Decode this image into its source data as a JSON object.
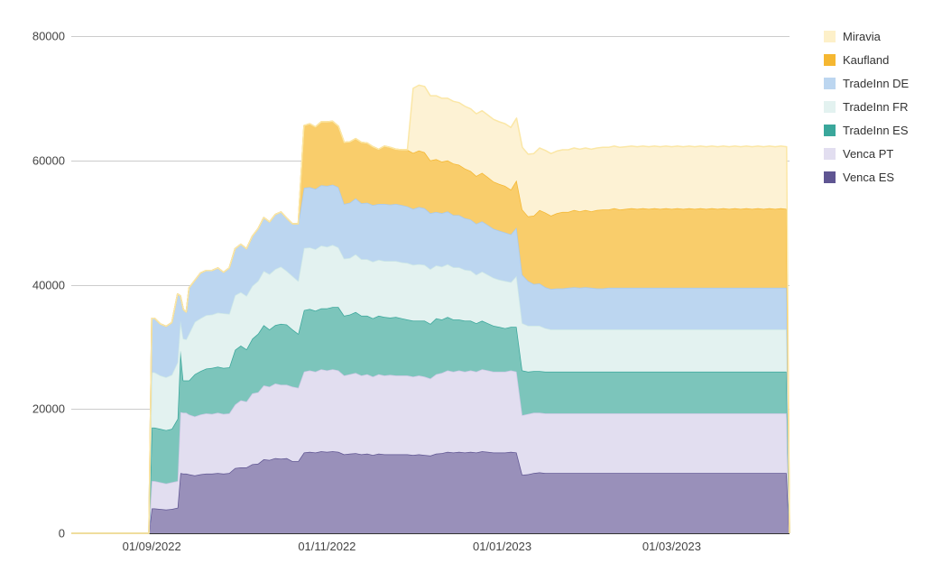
{
  "chart_data": {
    "type": "area",
    "stacked": true,
    "title": "",
    "xlabel": "",
    "ylabel": "",
    "ylim": [
      0,
      80000
    ],
    "y_ticks": [
      "0",
      "20000",
      "40000",
      "60000",
      "80000"
    ],
    "x_ticks": [
      "01/09/2022",
      "01/11/2022",
      "01/01/2023",
      "01/03/2023"
    ],
    "grid": true,
    "legend_position": "right",
    "x_domain_days": [
      0,
      250
    ],
    "x_tick_days": [
      28,
      89,
      150,
      209
    ],
    "x": [
      0,
      27,
      28,
      29,
      31,
      33,
      35,
      37,
      38,
      39,
      40,
      41,
      43,
      45,
      47,
      49,
      51,
      53,
      55,
      57,
      59,
      61,
      63,
      65,
      67,
      69,
      71,
      73,
      75,
      77,
      79,
      81,
      83,
      85,
      87,
      89,
      91,
      93,
      95,
      97,
      99,
      101,
      103,
      105,
      107,
      109,
      111,
      113,
      115,
      117,
      119,
      121,
      123,
      125,
      127,
      129,
      131,
      133,
      135,
      137,
      139,
      141,
      143,
      145,
      147,
      149,
      151,
      153,
      155,
      157,
      159,
      161,
      163,
      165,
      167,
      169,
      171,
      173,
      175,
      177,
      179,
      181,
      183,
      185,
      187,
      189,
      191,
      193,
      195,
      197,
      199,
      201,
      203,
      205,
      207,
      209,
      211,
      213,
      215,
      217,
      219,
      221,
      223,
      225,
      227,
      229,
      231,
      233,
      235,
      237,
      239,
      241,
      243,
      245,
      247,
      249,
      250
    ],
    "series": [
      {
        "name": "Venca ES",
        "color": "#5f5592",
        "fill": "#9990ba",
        "values": [
          0,
          0,
          4000,
          4000,
          3900,
          3800,
          3900,
          4100,
          9700,
          9600,
          9600,
          9500,
          9300,
          9500,
          9600,
          9600,
          9700,
          9600,
          9700,
          10500,
          10600,
          10600,
          11100,
          11200,
          11900,
          11800,
          12100,
          12000,
          12100,
          11600,
          11600,
          13000,
          13100,
          13000,
          13200,
          13100,
          13200,
          13100,
          12700,
          12800,
          12900,
          12700,
          12800,
          12600,
          12800,
          12700,
          12700,
          12700,
          12700,
          12700,
          12600,
          12700,
          12600,
          12500,
          12800,
          12900,
          13100,
          13000,
          13100,
          13000,
          13100,
          13000,
          13200,
          13100,
          13000,
          13000,
          13000,
          13100,
          13000,
          9400,
          9500,
          9700,
          9800,
          9700,
          9700,
          9700,
          9700,
          9700,
          9700,
          9700,
          9700,
          9700,
          9700,
          9700,
          9700,
          9700,
          9700,
          9700,
          9700,
          9700,
          9700,
          9700,
          9700,
          9700,
          9700,
          9700,
          9700,
          9700,
          9700,
          9700,
          9700,
          9700,
          9700,
          9700,
          9700,
          9700,
          9700,
          9700,
          9700,
          9700,
          9700,
          9700,
          9700,
          9700,
          9700,
          9700,
          0
        ]
      },
      {
        "name": "Venca PT",
        "color": "#cfc9e6",
        "fill": "#e2def0",
        "values": [
          0,
          0,
          4400,
          4400,
          4300,
          4200,
          4300,
          4300,
          9800,
          9800,
          9800,
          9600,
          9500,
          9600,
          9700,
          9600,
          9700,
          9600,
          9600,
          10200,
          10800,
          10600,
          11400,
          11500,
          11900,
          11800,
          12000,
          11900,
          11800,
          12000,
          11800,
          13000,
          13100,
          13000,
          13200,
          13100,
          13200,
          13100,
          12700,
          12800,
          12900,
          12700,
          12800,
          12600,
          12800,
          12700,
          12800,
          12700,
          12700,
          12700,
          12600,
          12700,
          12600,
          12400,
          12800,
          12900,
          13100,
          13000,
          13100,
          13000,
          13100,
          13000,
          13200,
          13100,
          13000,
          13000,
          13000,
          13100,
          13000,
          9600,
          9700,
          9700,
          9600,
          9600,
          9600,
          9600,
          9600,
          9600,
          9600,
          9600,
          9600,
          9600,
          9600,
          9600,
          9600,
          9600,
          9600,
          9600,
          9600,
          9600,
          9600,
          9600,
          9600,
          9600,
          9600,
          9600,
          9600,
          9600,
          9600,
          9600,
          9600,
          9600,
          9600,
          9600,
          9600,
          9600,
          9600,
          9600,
          9600,
          9600,
          9600,
          9600,
          9600,
          9600,
          9600,
          9600,
          0
        ]
      },
      {
        "name": "TradeInn ES",
        "color": "#3aa79b",
        "fill": "#7cc5bb",
        "values": [
          0,
          0,
          8600,
          8600,
          8600,
          8600,
          8600,
          10000,
          9900,
          5200,
          5200,
          5500,
          6800,
          7000,
          7200,
          7400,
          7400,
          7400,
          7400,
          8800,
          8800,
          8400,
          8800,
          9400,
          9700,
          9200,
          9400,
          9800,
          9700,
          9200,
          8700,
          9900,
          9900,
          9800,
          9800,
          10000,
          10000,
          10200,
          9600,
          9600,
          9800,
          9600,
          9400,
          9400,
          9400,
          9400,
          9200,
          9400,
          9200,
          9000,
          9000,
          8800,
          9000,
          8800,
          9000,
          8600,
          8600,
          8400,
          8200,
          8200,
          8000,
          7800,
          7800,
          7600,
          7400,
          7200,
          7000,
          7000,
          7200,
          7200,
          6800,
          6700,
          6700,
          6700,
          6700,
          6700,
          6700,
          6700,
          6700,
          6700,
          6700,
          6700,
          6700,
          6700,
          6700,
          6700,
          6700,
          6700,
          6700,
          6700,
          6700,
          6700,
          6700,
          6700,
          6700,
          6700,
          6700,
          6700,
          6700,
          6700,
          6700,
          6700,
          6700,
          6700,
          6700,
          6700,
          6700,
          6700,
          6700,
          6700,
          6700,
          6700,
          6700,
          6700,
          6700,
          6700,
          0
        ]
      },
      {
        "name": "TradeInn FR",
        "color": "#cfe9e6",
        "fill": "#e3f2f0",
        "values": [
          0,
          0,
          8900,
          8900,
          8600,
          8500,
          8700,
          9100,
          4800,
          6700,
          6600,
          7500,
          8400,
          8500,
          8600,
          8600,
          8700,
          8800,
          8600,
          8800,
          8600,
          8600,
          8500,
          8500,
          8700,
          8900,
          9000,
          9200,
          8600,
          8600,
          8500,
          10000,
          9900,
          9900,
          10100,
          9900,
          10000,
          9600,
          9200,
          9100,
          9300,
          9100,
          9100,
          9100,
          9000,
          9000,
          9100,
          9000,
          9000,
          9100,
          9000,
          9100,
          9000,
          8800,
          8500,
          8500,
          8500,
          8400,
          8400,
          8200,
          8100,
          7800,
          7900,
          7800,
          7700,
          7600,
          7600,
          7200,
          8200,
          7600,
          7400,
          7300,
          7300,
          7000,
          6800,
          6800,
          6800,
          6800,
          6800,
          6800,
          6800,
          6800,
          6800,
          6800,
          6800,
          6800,
          6800,
          6800,
          6800,
          6800,
          6800,
          6800,
          6800,
          6800,
          6800,
          6800,
          6800,
          6800,
          6800,
          6800,
          6800,
          6800,
          6800,
          6800,
          6800,
          6800,
          6800,
          6800,
          6800,
          6800,
          6800,
          6800,
          6800,
          6800,
          6800,
          6800,
          0
        ]
      },
      {
        "name": "TradeInn DE",
        "color": "#a9c9eb",
        "fill": "#bcd6f0",
        "values": [
          0,
          0,
          8700,
          8700,
          8300,
          8200,
          8400,
          11000,
          4000,
          4700,
          4400,
          7400,
          6700,
          7300,
          7200,
          7100,
          7200,
          6600,
          7400,
          7500,
          7700,
          7600,
          8000,
          8400,
          8600,
          8400,
          8800,
          8800,
          8500,
          8400,
          9200,
          9700,
          9700,
          9700,
          9700,
          9800,
          9700,
          9700,
          8800,
          8900,
          9000,
          9000,
          9100,
          9100,
          9000,
          9200,
          9100,
          9200,
          9200,
          9100,
          9000,
          9200,
          9100,
          9000,
          8600,
          8600,
          8500,
          8400,
          8400,
          8300,
          8200,
          8200,
          8100,
          8000,
          7900,
          7900,
          7800,
          7700,
          7800,
          7800,
          7200,
          6700,
          6800,
          6600,
          6500,
          6600,
          6600,
          6700,
          6800,
          6700,
          6800,
          6700,
          6600,
          6600,
          6700,
          6700,
          6700,
          6700,
          6700,
          6700,
          6700,
          6700,
          6700,
          6700,
          6700,
          6700,
          6700,
          6700,
          6700,
          6700,
          6700,
          6700,
          6700,
          6700,
          6700,
          6700,
          6700,
          6700,
          6700,
          6700,
          6700,
          6700,
          6700,
          6700,
          6700,
          6700,
          0
        ]
      },
      {
        "name": "Kaufland",
        "color": "#f5b731",
        "fill": "#f9cd6b",
        "values": [
          0,
          0,
          0,
          0,
          0,
          0,
          0,
          0,
          0,
          0,
          0,
          0,
          0,
          0,
          0,
          0,
          0,
          0,
          0,
          0,
          0,
          0,
          0,
          0,
          0,
          0,
          0,
          0,
          0,
          0,
          0,
          10000,
          10200,
          10000,
          10200,
          10300,
          10200,
          9800,
          9900,
          9800,
          9600,
          9800,
          9600,
          9400,
          8800,
          9300,
          9200,
          8800,
          8900,
          9100,
          9000,
          9100,
          9000,
          8500,
          8500,
          8300,
          8200,
          8300,
          8100,
          8000,
          7800,
          7700,
          7800,
          7700,
          7600,
          7500,
          7500,
          7200,
          7600,
          10500,
          10400,
          11000,
          11800,
          12000,
          11800,
          12100,
          12300,
          12200,
          12400,
          12300,
          12400,
          12300,
          12600,
          12700,
          12600,
          12800,
          12600,
          12700,
          12800,
          12700,
          12800,
          12700,
          12800,
          12700,
          12800,
          12700,
          12800,
          12700,
          12800,
          12700,
          12800,
          12700,
          12800,
          12700,
          12800,
          12700,
          12800,
          12700,
          12800,
          12700,
          12800,
          12700,
          12800,
          12700,
          12800,
          12700,
          0
        ]
      },
      {
        "name": "Miravia",
        "color": "#fbe7a6",
        "fill": "#fdf2d4",
        "values": [
          0,
          0,
          0,
          0,
          0,
          0,
          0,
          0,
          0,
          0,
          0,
          0,
          0,
          0,
          0,
          0,
          0,
          0,
          0,
          0,
          0,
          0,
          0,
          0,
          0,
          0,
          0,
          0,
          0,
          0,
          0,
          0,
          0,
          0,
          0,
          0,
          0,
          0,
          0,
          0,
          0,
          0,
          0,
          0,
          0,
          0,
          0,
          0,
          0,
          0,
          10400,
          10500,
          10600,
          10400,
          10200,
          10200,
          10000,
          10000,
          10000,
          10000,
          10000,
          10000,
          10000,
          10000,
          10000,
          10000,
          10000,
          10000,
          10000,
          10000,
          10000,
          10000,
          10000,
          10000,
          10000,
          10000,
          10000,
          10000,
          10000,
          10000,
          10000,
          10000,
          10000,
          10000,
          10000,
          10000,
          10000,
          10000,
          10000,
          10000,
          10000,
          10000,
          10000,
          10000,
          10000,
          10000,
          10000,
          10000,
          10000,
          10000,
          10000,
          10000,
          10000,
          10000,
          10000,
          10000,
          10000,
          10000,
          10000,
          10000,
          10000,
          10000,
          10000,
          10000,
          10000,
          10000,
          0
        ]
      }
    ]
  }
}
